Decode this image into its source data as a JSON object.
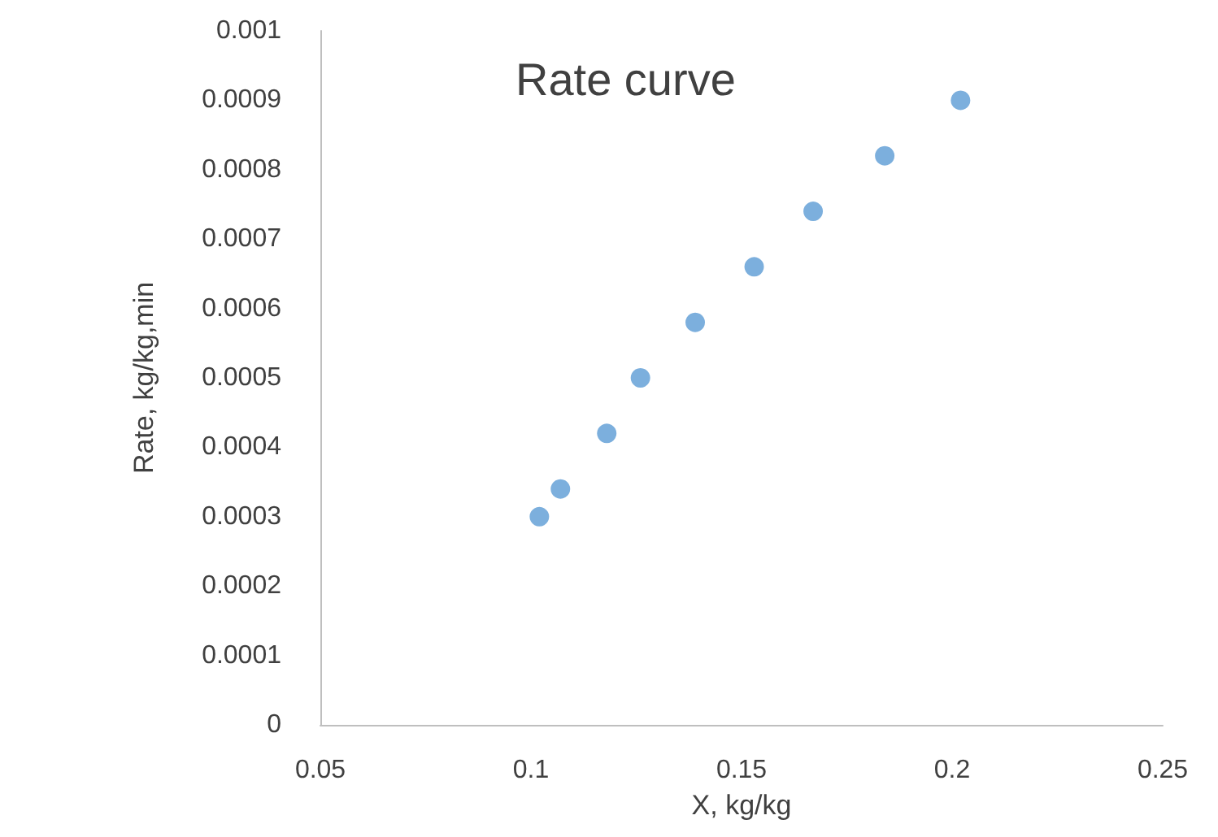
{
  "chart_data": {
    "type": "scatter",
    "title": "Rate curve",
    "xlabel": "X, kg/kg",
    "ylabel": "Rate, kg/kg,min",
    "x": [
      0.102,
      0.107,
      0.118,
      0.126,
      0.139,
      0.153,
      0.167,
      0.184,
      0.202
    ],
    "series": [
      {
        "color": "#5b9bd5",
        "values": [
          0.0003,
          0.00034,
          0.00042,
          0.0005,
          0.00058,
          0.00066,
          0.00074,
          0.00082,
          0.0009
        ]
      }
    ],
    "xlim": [
      0.05,
      0.25
    ],
    "xticks": [
      0.05,
      0.1,
      0.15,
      0.2,
      0.25
    ],
    "ylim": [
      0,
      0.001
    ],
    "yticks": [
      0,
      0.0001,
      0.0002,
      0.0003,
      0.0004,
      0.0005,
      0.0006,
      0.0007,
      0.0008,
      0.0009,
      0.001
    ],
    "grid": false,
    "marker": "circle"
  }
}
